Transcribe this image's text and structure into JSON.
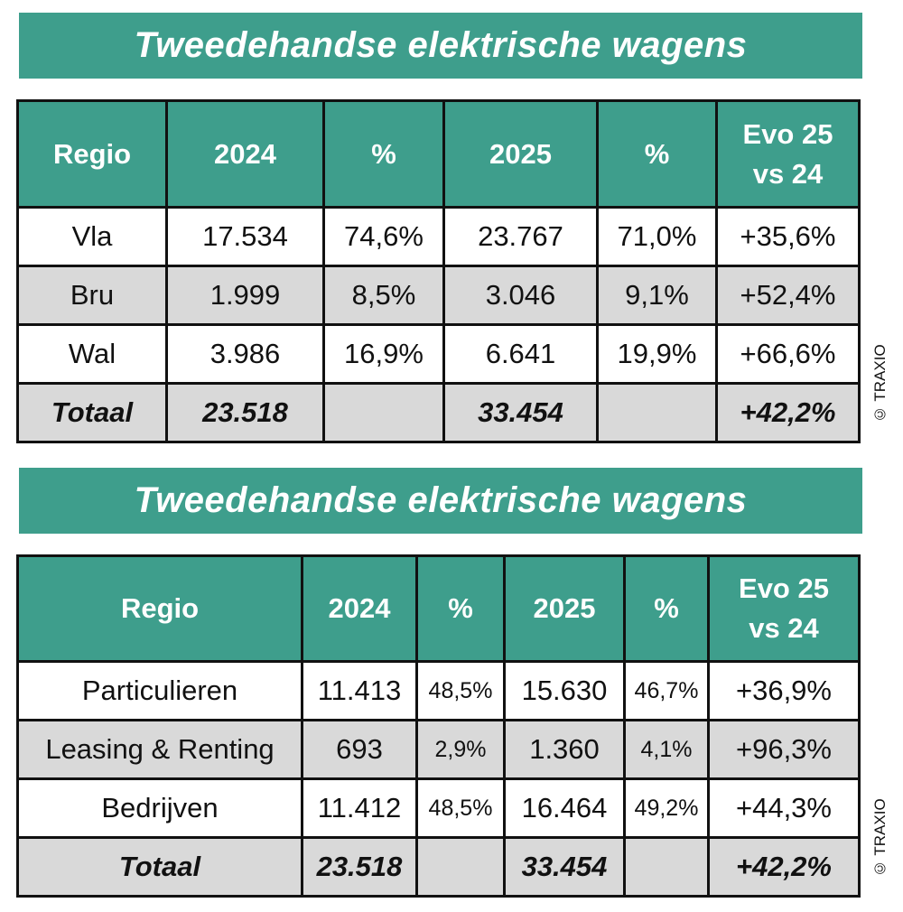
{
  "colors": {
    "header_bg": "#3e9e8c",
    "stripe_bg": "#d9d9d9"
  },
  "tables": [
    {
      "title": "Tweedehandse elektrische wagens",
      "headers": [
        "Regio",
        "2024",
        "%",
        "2025",
        "%",
        "Evo 25 vs 24"
      ],
      "rows": [
        [
          "Vla",
          "17.534",
          "74,6%",
          "23.767",
          "71,0%",
          "+35,6%"
        ],
        [
          "Bru",
          "1.999",
          "8,5%",
          "3.046",
          "9,1%",
          "+52,4%"
        ],
        [
          "Wal",
          "3.986",
          "16,9%",
          "6.641",
          "19,9%",
          "+66,6%"
        ],
        [
          "Totaal",
          "23.518",
          "",
          "33.454",
          "",
          "+42,2%"
        ]
      ],
      "copyright": "© TRAXIO"
    },
    {
      "title": "Tweedehandse elektrische wagens",
      "headers": [
        "Regio",
        "2024",
        "%",
        "2025",
        "%",
        "Evo 25 vs 24"
      ],
      "rows": [
        [
          "Particulieren",
          "11.413",
          "48,5%",
          "15.630",
          "46,7%",
          "+36,9%"
        ],
        [
          "Leasing & Renting",
          "693",
          "2,9%",
          "1.360",
          "4,1%",
          "+96,3%"
        ],
        [
          "Bedrijven",
          "11.412",
          "48,5%",
          "16.464",
          "49,2%",
          "+44,3%"
        ],
        [
          "Totaal",
          "23.518",
          "",
          "33.454",
          "",
          "+42,2%"
        ]
      ],
      "copyright": "© TRAXIO"
    }
  ]
}
